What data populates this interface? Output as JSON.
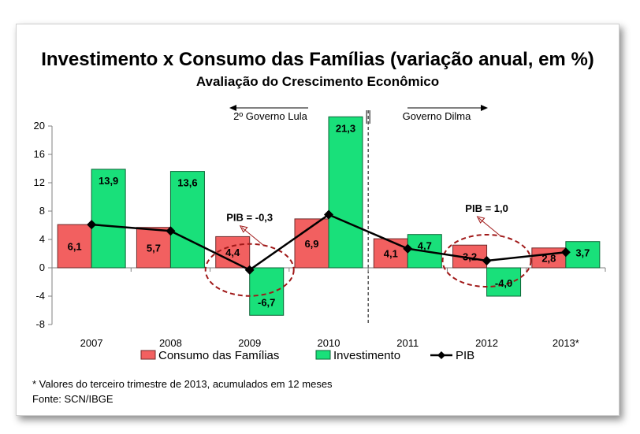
{
  "chart_data": {
    "type": "bar",
    "title": "Investimento x Consumo das Famílias (variação anual, em %)",
    "subtitle": "Avaliação do Crescimento Econômico",
    "categories": [
      "2007",
      "2008",
      "2009",
      "2010",
      "2011",
      "2012",
      "2013*"
    ],
    "series": [
      {
        "name": "Consumo das Famílias",
        "type": "bar",
        "color": "#f26060",
        "values": [
          6.1,
          5.7,
          4.4,
          6.9,
          4.1,
          3.2,
          2.8
        ],
        "labels": [
          "6,1",
          "5,7",
          "4,4",
          "6,9",
          "4,1",
          "3,2",
          "2,8"
        ]
      },
      {
        "name": "Investimento",
        "type": "bar",
        "color": "#19e07a",
        "values": [
          13.9,
          13.6,
          -6.7,
          21.3,
          4.7,
          -4.0,
          3.7
        ],
        "labels": [
          "13,9",
          "13,6",
          "-6,7",
          "21,3",
          "4,7",
          "-4,0",
          "3,7"
        ]
      },
      {
        "name": "PIB",
        "type": "line",
        "color": "#000000",
        "values": [
          6.1,
          5.2,
          -0.3,
          7.5,
          2.7,
          1.0,
          2.2
        ]
      }
    ],
    "ylim": [
      -8,
      20
    ],
    "yticks": [
      20,
      16,
      12,
      8,
      4,
      0,
      -4,
      -8
    ],
    "grid": false,
    "legend": "bottom",
    "annotations": {
      "governo_lula": "2º Governo Lula",
      "governo_dilma": "Governo Dilma",
      "pib_2009": "PIB = -0,3",
      "pib_2012": "PIB = 1,0"
    },
    "footnote": "* Valores do terceiro trimestre de 2013, acumulados em 12 meses",
    "source": "Fonte: SCN/IBGE"
  }
}
